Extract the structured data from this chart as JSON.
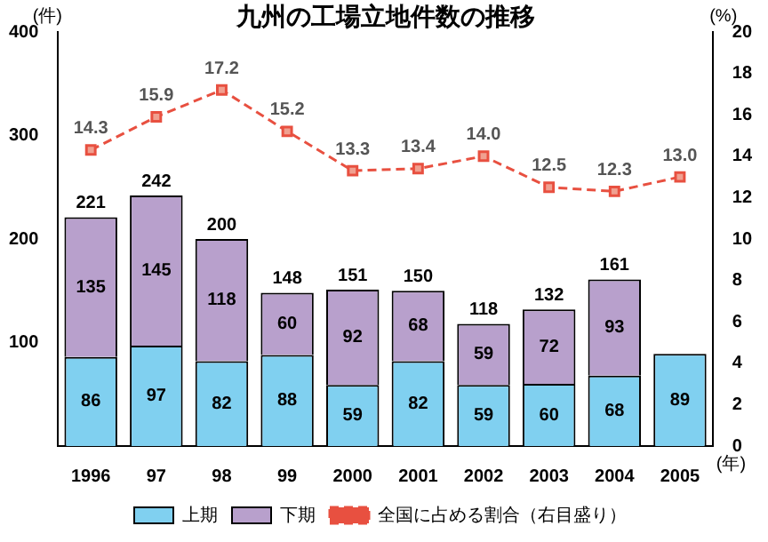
{
  "chart_data": {
    "type": "bar",
    "title": "九州の工場立地件数の推移",
    "ylabel": "(件)",
    "y2label": "(%)",
    "xlabel": "(年)",
    "categories": [
      "1996",
      "97",
      "98",
      "99",
      "2000",
      "2001",
      "2002",
      "2003",
      "2004",
      "2005"
    ],
    "stacked": true,
    "series": [
      {
        "name": "上期",
        "color": "#80d0f0",
        "values": [
          86,
          97,
          82,
          88,
          59,
          82,
          59,
          60,
          68,
          89
        ]
      },
      {
        "name": "下期",
        "color": "#b8a0cc",
        "values": [
          135,
          145,
          118,
          60,
          92,
          68,
          59,
          72,
          93,
          null
        ]
      },
      {
        "name": "全国に占める割合（右目盛り）",
        "type": "line",
        "axis": "y2",
        "color": "#e85040",
        "marker": "square",
        "line_style": "dashed",
        "values": [
          14.3,
          15.9,
          17.2,
          15.2,
          13.3,
          13.4,
          14.0,
          12.5,
          12.3,
          13.0
        ],
        "value_labels": [
          "14.3",
          "15.9",
          "17.2",
          "15.2",
          "13.3",
          "13.4",
          "14.0",
          "12.5",
          "12.3",
          "13.0"
        ]
      }
    ],
    "totals": [
      "221",
      "242",
      "200",
      "148",
      "151",
      "150",
      "118",
      "132",
      "161",
      null
    ],
    "data_labels": true,
    "ylim": [
      0,
      400
    ],
    "yticks": [
      {
        "value": 0,
        "label": null
      },
      100,
      200,
      300,
      400
    ],
    "y2lim": [
      0,
      20
    ],
    "y2ticks": [
      0,
      2,
      4,
      6,
      8,
      10,
      12,
      14,
      16,
      18,
      20
    ],
    "grid": false,
    "legend": "bottom"
  }
}
